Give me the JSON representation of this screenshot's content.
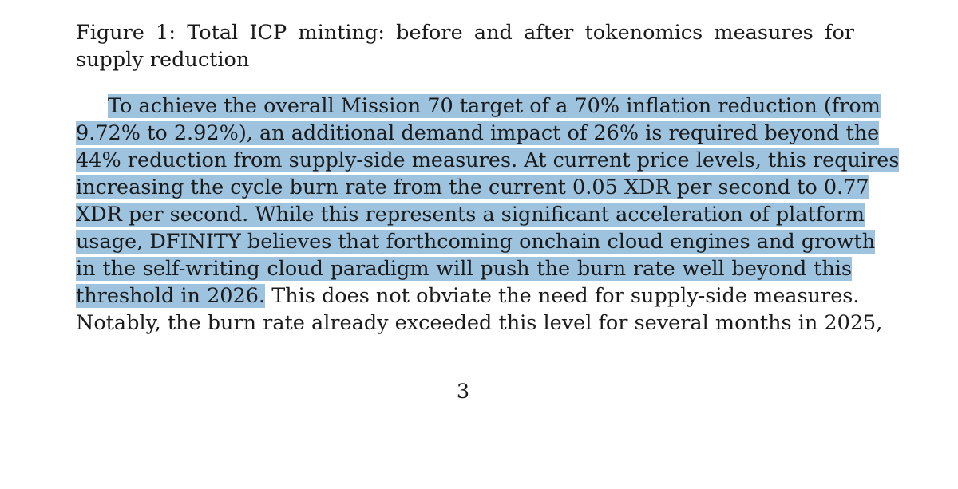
{
  "caption": "Figure 1: Total ICP minting: before and after tokenomics measures for supply reduction",
  "paragraph": {
    "lines": [
      {
        "highlighted": "To achieve the overall Mission 70 target of a 70% inflation reduction (from",
        "rest": ""
      },
      {
        "highlighted": "9.72% to 2.92%), an additional demand impact of 26% is required beyond the",
        "rest": ""
      },
      {
        "highlighted": "44% reduction from supply-side measures. At current price levels, this requires",
        "rest": ""
      },
      {
        "highlighted": "increasing the cycle burn rate from the current 0.05 XDR per second to 0.77",
        "rest": ""
      },
      {
        "highlighted": "XDR per second. While this represents a significant acceleration of platform",
        "rest": ""
      },
      {
        "highlighted": "usage, DFINITY believes that forthcoming onchain cloud engines and growth",
        "rest": ""
      },
      {
        "highlighted": "in the self-writing cloud paradigm will push the burn rate well beyond this",
        "rest": ""
      },
      {
        "highlighted": "threshold in 2026.",
        "rest": " This does not obviate the need for supply-side measures."
      },
      {
        "highlighted": "",
        "rest": "Notably, the burn rate already exceeded this level for several months in 2025,"
      }
    ]
  },
  "page_number": "3",
  "colors": {
    "highlight": "#9ec3df",
    "text": "#1a1a1a",
    "background": "#ffffff"
  }
}
